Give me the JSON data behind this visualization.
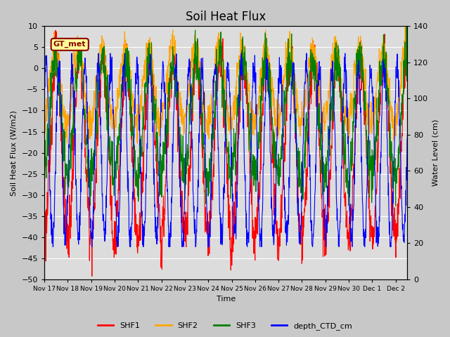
{
  "title": "Soil Heat Flux",
  "xlabel": "Time",
  "ylabel_left": "Soil Heat Flux (W/m2)",
  "ylabel_right": "Water Level (cm)",
  "ylim_left": [
    -50,
    10
  ],
  "ylim_right": [
    0,
    140
  ],
  "xlim_days": [
    0,
    15.5
  ],
  "x_tick_labels": [
    "Nov 17",
    "Nov 18",
    "Nov 19",
    "Nov 20",
    "Nov 21",
    "Nov 22",
    "Nov 23",
    "Nov 24",
    "Nov 25",
    "Nov 26",
    "Nov 27",
    "Nov 28",
    "Nov 29",
    "Nov 30",
    "Dec 1",
    "Dec 2"
  ],
  "annotation_text": "GT_met",
  "annotation_color": "#8B0000",
  "annotation_bg": "#FFFF99",
  "colors": {
    "SHF1": "#FF0000",
    "SHF2": "#FFA500",
    "SHF3": "#008000",
    "depth_CTD_cm": "#0000FF"
  },
  "legend_labels": [
    "SHF1",
    "SHF2",
    "SHF3",
    "depth_CTD_cm"
  ],
  "fig_bg": "#C8C8C8",
  "plot_bg": "#DCDCDC",
  "grid_color": "#F0F0F0",
  "title_fontsize": 12,
  "yticks_left": [
    -50,
    -45,
    -40,
    -35,
    -30,
    -25,
    -20,
    -15,
    -10,
    -5,
    0,
    5,
    10
  ],
  "yticks_right": [
    0,
    20,
    40,
    60,
    80,
    100,
    120,
    140
  ]
}
